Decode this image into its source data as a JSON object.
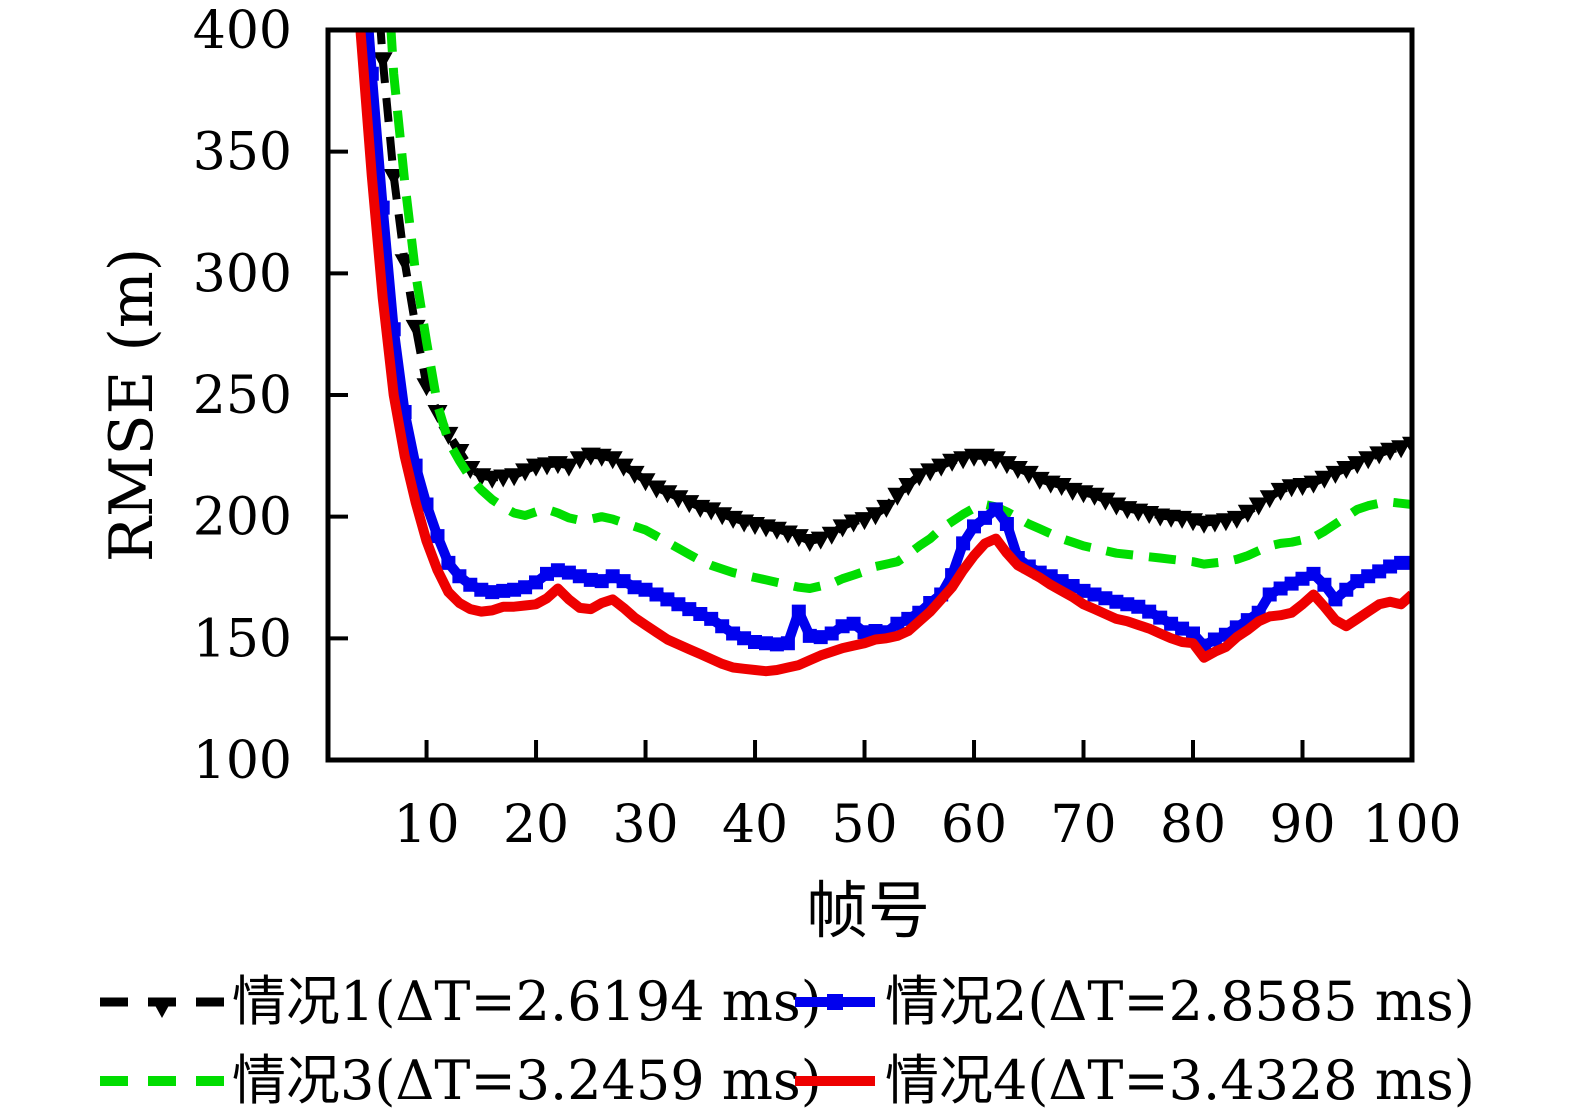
{
  "chart_data": {
    "type": "line",
    "title": "",
    "xlabel": "帧号",
    "ylabel": "RMSE (m)",
    "xlim": [
      1,
      100
    ],
    "ylim": [
      100,
      400
    ],
    "grid": false,
    "legend_position": "below-two-column",
    "x_ticks": [
      10,
      20,
      30,
      40,
      50,
      60,
      70,
      80,
      90,
      100
    ],
    "y_ticks": [
      100,
      150,
      200,
      250,
      300,
      350,
      400
    ],
    "x": [
      3,
      4,
      5,
      6,
      7,
      8,
      9,
      10,
      11,
      12,
      13,
      14,
      15,
      16,
      17,
      18,
      19,
      20,
      21,
      22,
      23,
      24,
      25,
      26,
      27,
      28,
      29,
      30,
      31,
      32,
      33,
      34,
      35,
      36,
      37,
      38,
      39,
      40,
      41,
      42,
      43,
      44,
      45,
      46,
      47,
      48,
      49,
      50,
      51,
      52,
      53,
      54,
      55,
      56,
      57,
      58,
      59,
      60,
      61,
      62,
      63,
      64,
      65,
      66,
      67,
      68,
      69,
      70,
      71,
      72,
      73,
      74,
      75,
      76,
      77,
      78,
      79,
      80,
      81,
      82,
      83,
      84,
      85,
      86,
      87,
      88,
      89,
      90,
      91,
      92,
      93,
      94,
      95,
      96,
      97,
      98,
      99,
      100
    ],
    "series": [
      {
        "name": "情况1(ΔT=2.6194 ms)",
        "color": "#000000",
        "style": "dashed",
        "marker": "triangle-down",
        "values": [
          null,
          null,
          452,
          388,
          340,
          305,
          278,
          254,
          243,
          234,
          227,
          220,
          217,
          216,
          216.5,
          217,
          219,
          221,
          221.5,
          222,
          221,
          224,
          225.5,
          225,
          224,
          221,
          218,
          215,
          212,
          210,
          208,
          206,
          204,
          203,
          201,
          199.5,
          198,
          197,
          196,
          195,
          193.5,
          192,
          190,
          191,
          193,
          196,
          198,
          199,
          201,
          204,
          209,
          213,
          217,
          219,
          221,
          223,
          224,
          225,
          225,
          224,
          222,
          220,
          218,
          215.5,
          214,
          213,
          211,
          210,
          209,
          207,
          205,
          203.5,
          202.5,
          201.5,
          200.5,
          200,
          199.5,
          198.5,
          197.5,
          198,
          198.5,
          199.5,
          202,
          205,
          208,
          211,
          212.5,
          213,
          214,
          216,
          218,
          220,
          222,
          224,
          226,
          227.5,
          228.5,
          230
        ]
      },
      {
        "name": "情况2(ΔT=2.8585 ms)",
        "color": "#0000ee",
        "style": "solid",
        "marker": "square",
        "values": [
          null,
          445,
          382,
          327,
          277,
          243,
          221,
          205,
          192,
          181,
          175.5,
          172,
          170,
          169,
          169.5,
          170,
          171,
          173,
          176.5,
          178,
          177,
          175.5,
          174,
          173.5,
          175.5,
          173.5,
          171,
          170,
          168,
          166,
          164,
          162,
          160,
          158,
          155,
          152,
          150,
          148.5,
          148,
          147.5,
          148,
          161,
          151,
          150.5,
          152,
          155,
          156,
          152.5,
          153,
          152.5,
          156,
          158,
          160.5,
          164.5,
          168,
          176,
          189,
          196,
          199.5,
          203,
          197,
          183,
          179.5,
          177,
          175.5,
          173.5,
          171.5,
          169.5,
          168,
          166.5,
          165,
          164,
          163,
          161,
          158.5,
          156,
          154,
          152,
          147,
          149.5,
          151.5,
          154.5,
          157.5,
          160.5,
          168,
          170.5,
          172.5,
          174.5,
          176.5,
          172,
          166,
          170,
          173.5,
          175.5,
          177.5,
          179.5,
          181,
          181
        ]
      },
      {
        "name": "情况3(ΔT=3.2459 ms)",
        "color": "#00dd00",
        "style": "dashed",
        "marker": "none",
        "values": [
          null,
          null,
          null,
          455,
          382,
          338,
          300,
          272,
          246,
          231,
          223,
          216,
          211,
          207,
          204,
          201.5,
          200.5,
          202,
          203,
          201.5,
          199.5,
          198.5,
          199,
          200,
          199,
          197.5,
          196,
          194.5,
          192,
          189.5,
          187,
          184.5,
          182,
          180,
          178.5,
          177,
          176,
          175,
          174,
          173,
          172,
          171,
          170.5,
          171.5,
          172.5,
          174.5,
          176,
          177.5,
          179.5,
          180.5,
          181.5,
          184.5,
          188,
          191,
          195,
          198,
          201,
          203.5,
          205,
          204,
          202,
          199.5,
          197,
          195,
          193,
          191,
          189.5,
          188,
          187,
          186,
          185,
          184.5,
          184,
          183.5,
          183,
          182.5,
          182,
          181.5,
          180.5,
          181,
          181.5,
          182.5,
          184,
          186,
          188,
          189,
          189.5,
          190.5,
          191.5,
          194,
          197,
          200,
          203,
          204.5,
          205.5,
          206,
          205.5,
          205
        ]
      },
      {
        "name": "情况4(ΔT=3.4328 ms)",
        "color": "#ee0000",
        "style": "solid",
        "marker": "none",
        "values": [
          470,
          398,
          340,
          290,
          250,
          225,
          206,
          190,
          178,
          169,
          164.5,
          162,
          161,
          161.5,
          163,
          163,
          163.5,
          164,
          166.5,
          170.5,
          166,
          162.5,
          162,
          164.5,
          166,
          162.5,
          158.5,
          155.5,
          152.5,
          149.5,
          147.5,
          145.5,
          143.5,
          141.5,
          139.5,
          138,
          137.5,
          137,
          136.5,
          137,
          138,
          139,
          141,
          143,
          144.5,
          146,
          147,
          148,
          149.5,
          150,
          151,
          153,
          157,
          161,
          166,
          171,
          178,
          184,
          189,
          191,
          185,
          180,
          177.5,
          175,
          172,
          169.5,
          167,
          164,
          162,
          160,
          158,
          157,
          155.5,
          154,
          152,
          150,
          148.5,
          148,
          142,
          144.5,
          146.5,
          150.5,
          153.5,
          157,
          159,
          159.5,
          160.5,
          164,
          168,
          163,
          157.5,
          155,
          158,
          161,
          164,
          165,
          164,
          168
        ]
      }
    ]
  }
}
